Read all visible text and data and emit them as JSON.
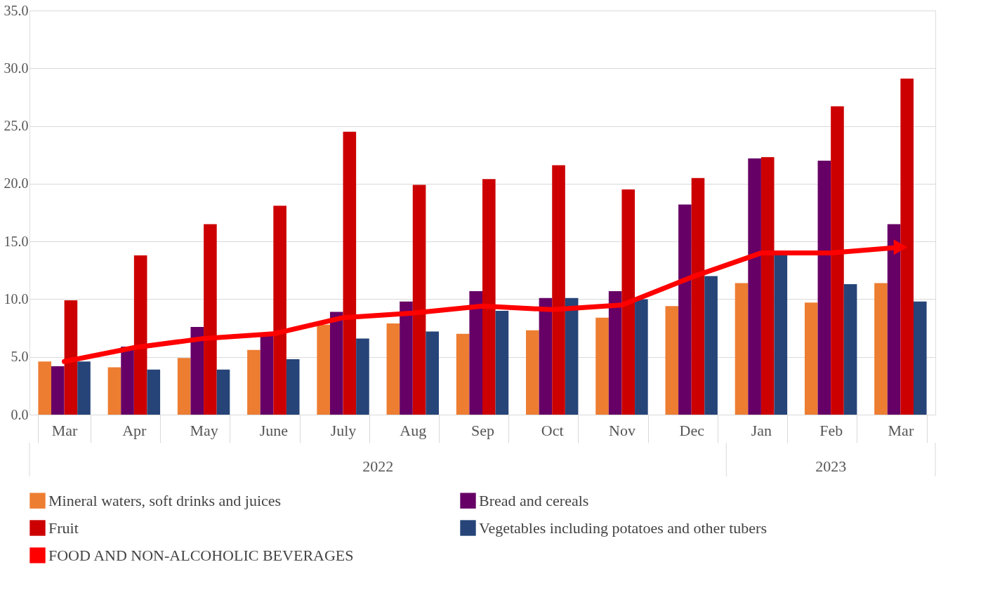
{
  "chart_data": {
    "type": "bar",
    "categories": [
      "Mar",
      "Apr",
      "May",
      "June",
      "July",
      "Aug",
      "Sep",
      "Oct",
      "Nov",
      "Dec",
      "Jan",
      "Feb",
      "Mar"
    ],
    "annotations": [
      "2022",
      "2023"
    ],
    "series": [
      {
        "name": "Mineral waters, soft drinks and juices",
        "color": "#ed7d31",
        "values": [
          4.6,
          4.1,
          4.9,
          5.6,
          7.8,
          7.9,
          7.0,
          7.3,
          8.4,
          9.4,
          11.4,
          9.7,
          11.4
        ]
      },
      {
        "name": "Bread and cereals",
        "color": "#660066",
        "values": [
          4.2,
          5.9,
          7.6,
          6.9,
          8.9,
          9.8,
          10.7,
          10.1,
          10.7,
          18.2,
          22.2,
          22.0,
          16.5
        ]
      },
      {
        "name": "Fruit",
        "color": "#cc0000",
        "values": [
          9.9,
          13.8,
          16.5,
          18.1,
          24.5,
          19.9,
          20.4,
          21.6,
          19.5,
          20.5,
          22.3,
          26.7,
          29.1
        ]
      },
      {
        "name": "Vegetables including potatoes and other tubers",
        "color": "#264478",
        "values": [
          4.6,
          3.9,
          3.9,
          4.8,
          6.6,
          7.2,
          9.0,
          10.1,
          10.0,
          12.0,
          13.8,
          11.3,
          9.8
        ]
      },
      {
        "name": "FOOD AND NON-ALCOHOLIC BEVERAGES",
        "type": "line",
        "color": "#ff0000",
        "values": [
          4.6,
          5.8,
          6.6,
          7.0,
          8.4,
          8.8,
          9.4,
          9.1,
          9.5,
          11.9,
          14.0,
          14.0,
          14.5
        ]
      }
    ],
    "ylim": [
      0,
      35
    ],
    "yticks": [
      {
        "value": 0,
        "label": "0.0"
      },
      {
        "value": 5,
        "label": "5.0"
      },
      {
        "value": 10,
        "label": "10.0"
      },
      {
        "value": 15,
        "label": "15.0"
      },
      {
        "value": 20,
        "label": "20.0"
      },
      {
        "value": 25,
        "label": "25.0"
      },
      {
        "value": 30,
        "label": "30.0"
      },
      {
        "value": 35,
        "label": "35.0"
      }
    ],
    "grid": "y",
    "legend": "bottom",
    "line_style": "solid"
  }
}
